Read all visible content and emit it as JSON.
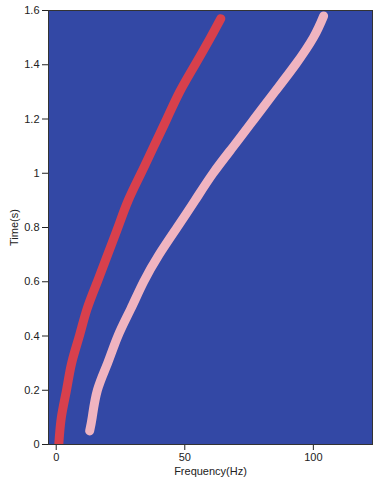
{
  "chart_data": {
    "type": "line",
    "x_label": "Frequency(Hz)",
    "y_label": "Time(s)",
    "xlim": [
      -3,
      123
    ],
    "xticks": [
      0,
      50,
      100
    ],
    "ylim": [
      0,
      1.6
    ],
    "yticks": [
      0,
      0.2,
      0.4,
      0.6,
      0.8,
      1,
      1.2,
      1.4,
      1.6
    ],
    "grid": false,
    "series": [
      {
        "color": "#d8404c",
        "x": [
          1,
          2,
          4,
          6,
          9,
          12,
          16,
          20,
          24,
          28,
          33,
          38,
          43,
          48,
          54,
          60,
          64
        ],
        "y": [
          0,
          0.1,
          0.2,
          0.3,
          0.4,
          0.5,
          0.6,
          0.7,
          0.8,
          0.9,
          1,
          1.1,
          1.2,
          1.3,
          1.4,
          1.5,
          1.57
        ]
      },
      {
        "color": "#f0b4c0",
        "x": [
          13,
          14,
          16,
          20,
          24,
          29,
          34,
          40,
          47,
          54,
          61,
          69,
          77,
          85,
          93,
          100,
          104
        ],
        "y": [
          0.05,
          0.1,
          0.2,
          0.3,
          0.4,
          0.5,
          0.6,
          0.7,
          0.8,
          0.9,
          1,
          1.1,
          1.2,
          1.3,
          1.4,
          1.5,
          1.58
        ]
      }
    ]
  }
}
